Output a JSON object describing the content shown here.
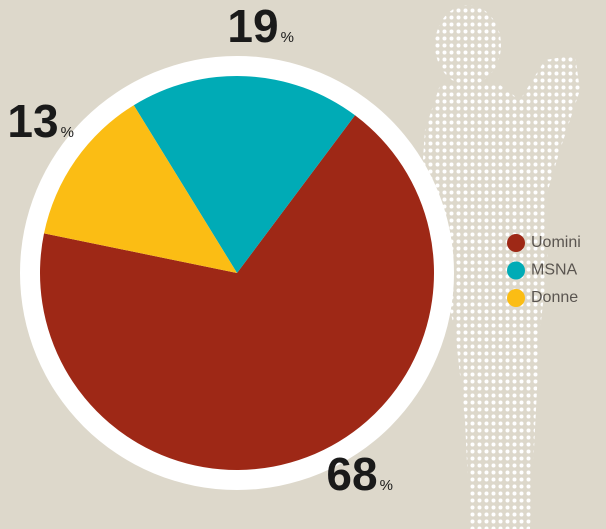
{
  "chart_data": {
    "type": "pie",
    "categories": [
      "Uomini",
      "MSNA",
      "Donne"
    ],
    "values": [
      68,
      19,
      13
    ],
    "colors": [
      "#9e2816",
      "#00abb6",
      "#fbbd14"
    ],
    "unit": "%",
    "legend": "right"
  }
}
